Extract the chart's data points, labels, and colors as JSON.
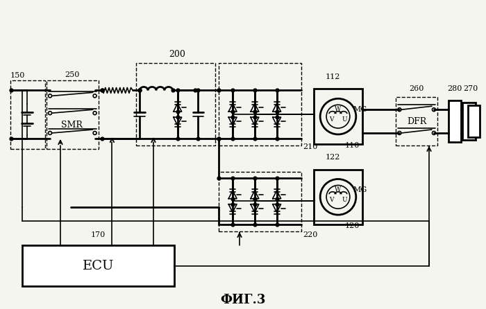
{
  "title": "ФИГ.3",
  "bg_color": "#f5f5f0",
  "labels": {
    "150": "150",
    "250": "250",
    "200": "200",
    "210": "210",
    "220": "220",
    "110": "110",
    "112": "112",
    "120": "120",
    "122": "122",
    "170": "170",
    "260": "260",
    "280": "280",
    "270": "270",
    "SMR": "SMR",
    "ECU": "ECU",
    "DFR": "DFR",
    "MG": "MG",
    "V": "V",
    "U": "U",
    "W": "W"
  },
  "figsize": [
    7.0,
    4.46
  ],
  "dpi": 100
}
